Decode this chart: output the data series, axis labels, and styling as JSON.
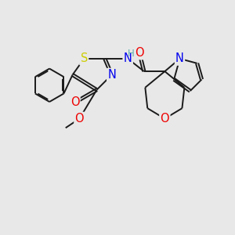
{
  "background_color": "#e8e8e8",
  "bond_color": "#1a1a1a",
  "bond_width": 1.4,
  "figsize": [
    3.0,
    3.0
  ],
  "dpi": 100,
  "colors": {
    "C": "#1a1a1a",
    "N": "#0000ee",
    "O": "#ee0000",
    "S": "#cccc00",
    "H_teal": "#5fafaf"
  },
  "font_size": 9.5
}
